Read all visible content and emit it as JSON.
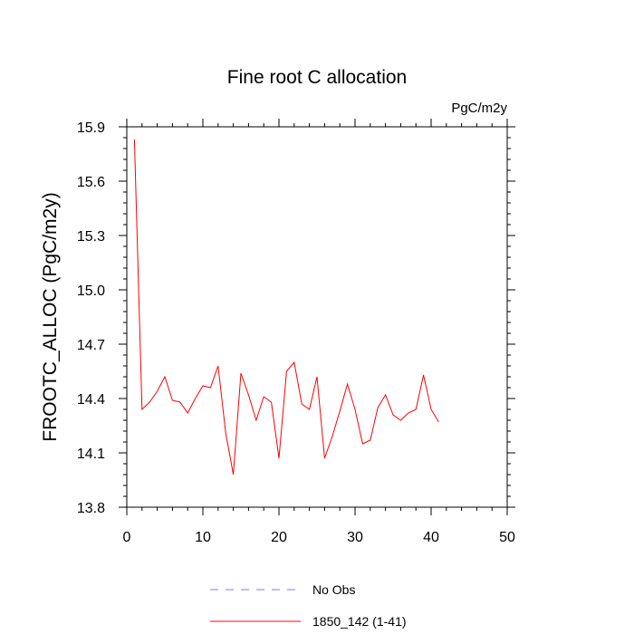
{
  "chart_data": {
    "type": "line",
    "title": "Fine root C allocation",
    "units": "PgC/m2y",
    "xlabel": "",
    "ylabel": "FROOTC_ALLOC  (PgC/m2y)",
    "xlim": [
      0,
      50
    ],
    "ylim": [
      13.8,
      15.9
    ],
    "xticks": [
      0,
      10,
      20,
      30,
      40,
      50
    ],
    "yticks": [
      13.8,
      14.1,
      14.4,
      14.7,
      15.0,
      15.3,
      15.6,
      15.9
    ],
    "xtick_labels": [
      "0",
      "10",
      "20",
      "30",
      "40",
      "50"
    ],
    "ytick_labels": [
      "13.8",
      "14.1",
      "14.4",
      "14.7",
      "15.0",
      "15.3",
      "15.6",
      "15.9"
    ],
    "series": [
      {
        "name": "No Obs",
        "color": "#7b7bff",
        "dash": "dashed",
        "x": [],
        "values": []
      },
      {
        "name": "1850_142 (1-41)",
        "color": "#ff0000",
        "dash": "solid",
        "x": [
          1,
          2,
          3,
          4,
          5,
          6,
          7,
          8,
          9,
          10,
          11,
          12,
          13,
          14,
          15,
          16,
          17,
          18,
          19,
          20,
          21,
          22,
          23,
          24,
          25,
          26,
          27,
          28,
          29,
          30,
          31,
          32,
          33,
          34,
          35,
          36,
          37,
          38,
          39,
          40,
          41
        ],
        "values": [
          15.83,
          14.34,
          14.38,
          14.44,
          14.52,
          14.39,
          14.38,
          14.32,
          14.4,
          14.47,
          14.46,
          14.58,
          14.21,
          13.98,
          14.54,
          14.42,
          14.28,
          14.41,
          14.38,
          14.07,
          14.55,
          14.6,
          14.37,
          14.34,
          14.52,
          14.07,
          14.19,
          14.33,
          14.48,
          14.34,
          14.15,
          14.17,
          14.35,
          14.42,
          14.31,
          14.28,
          14.32,
          14.34,
          14.53,
          14.34,
          14.27
        ]
      }
    ]
  }
}
